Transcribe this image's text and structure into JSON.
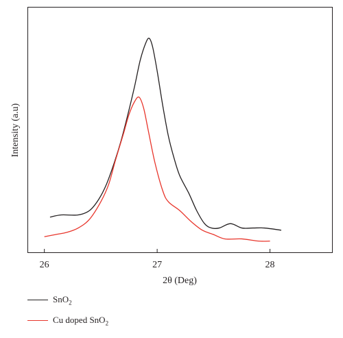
{
  "chart_data": {
    "type": "line",
    "xlabel": "2θ (Deg)",
    "ylabel": "Intensity (a.u)",
    "xlim": [
      25.85,
      28.55
    ],
    "ylim": [
      0,
      1
    ],
    "xticks": [
      26,
      27,
      28
    ],
    "tick_labels": [
      "26",
      "27",
      "28"
    ],
    "yticks_shown": false,
    "grid": false,
    "legend_position": "below",
    "series": [
      {
        "name": "SnO2",
        "name_base": "SnO",
        "name_sub": "2",
        "color": "#231f20",
        "x": [
          26.05,
          26.15,
          26.3,
          26.4,
          26.48,
          26.55,
          26.62,
          26.68,
          26.74,
          26.8,
          26.85,
          26.9,
          26.93,
          26.96,
          27.0,
          27.05,
          27.1,
          27.15,
          27.2,
          27.28,
          27.35,
          27.42,
          27.48,
          27.55,
          27.65,
          27.75,
          27.85,
          27.95,
          28.1
        ],
        "y": [
          0.13,
          0.14,
          0.14,
          0.16,
          0.21,
          0.28,
          0.38,
          0.48,
          0.6,
          0.73,
          0.85,
          0.93,
          0.95,
          0.91,
          0.8,
          0.64,
          0.5,
          0.4,
          0.32,
          0.24,
          0.16,
          0.1,
          0.08,
          0.08,
          0.1,
          0.08,
          0.08,
          0.08,
          0.07
        ]
      },
      {
        "name": "Cu doped SnO2",
        "name_base": "Cu doped SnO",
        "name_sub": "2",
        "color": "#e8352b",
        "x": [
          26.0,
          26.1,
          26.2,
          26.3,
          26.4,
          26.5,
          26.57,
          26.63,
          26.7,
          26.75,
          26.8,
          26.84,
          26.88,
          26.92,
          26.98,
          27.05,
          27.1,
          27.2,
          27.3,
          27.4,
          27.5,
          27.6,
          27.75,
          27.9,
          28.0
        ],
        "y": [
          0.04,
          0.05,
          0.06,
          0.08,
          0.12,
          0.2,
          0.28,
          0.39,
          0.51,
          0.6,
          0.66,
          0.68,
          0.63,
          0.53,
          0.38,
          0.25,
          0.2,
          0.16,
          0.11,
          0.07,
          0.05,
          0.03,
          0.03,
          0.02,
          0.02
        ]
      }
    ]
  }
}
